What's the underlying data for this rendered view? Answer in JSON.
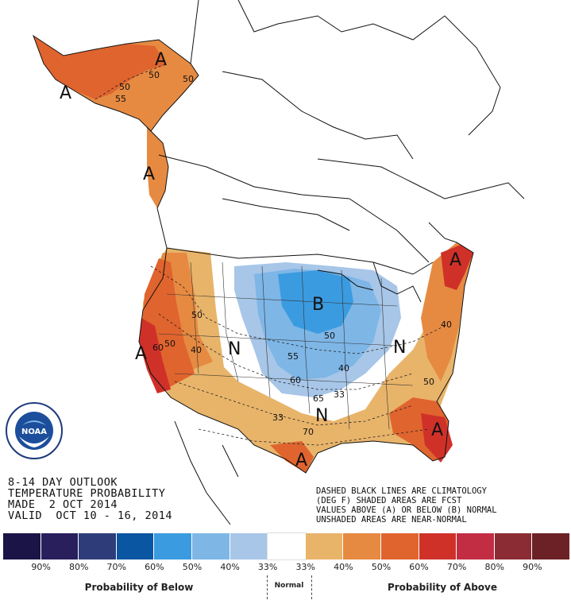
{
  "title_block": {
    "line1": "8-14 DAY OUTLOOK",
    "line2": "TEMPERATURE PROBABILITY",
    "line3": "MADE  2 OCT 2014",
    "line4": "VALID  OCT 10 - 16, 2014"
  },
  "notes": {
    "line1": "DASHED BLACK LINES ARE CLIMATOLOGY",
    "line2": "(DEG F) SHADED AREAS ARE FCST",
    "line3": "VALUES ABOVE (A) OR BELOW (B) NORMAL",
    "line4": "UNSHADED AREAS ARE NEAR-NORMAL"
  },
  "logo": {
    "text": "NOAA",
    "ring_text": "NATIONAL OCEANIC AND ATMOSPHERIC ADMINISTRATION · U.S. DEPARTMENT OF COMMERCE"
  },
  "map_labels": {
    "A_alaska": "A",
    "A_alaska_south": "A",
    "A_alaska_west": "A",
    "A_west_coast": "A",
    "A_northeast": "A",
    "A_southeast": "A",
    "A_texas": "A",
    "B_central": "B",
    "N_west": "N",
    "N_south": "N",
    "N_east": "N",
    "p50_alaska_a": "50",
    "p50_alaska_b": "50",
    "p50_alaska_c": "50",
    "p55_alaska": "55",
    "p50_nw": "50",
    "p60_west": "60",
    "p50_west": "50",
    "p40_west": "40",
    "p50_central": "50",
    "p55_central": "55",
    "p40_central": "40",
    "p60_central": "60",
    "p65_central": "65",
    "p33_central": "33",
    "p33_south": "33",
    "p50_southeast": "50",
    "p40_east": "40",
    "p70_east": "70"
  },
  "legend": {
    "colors": [
      "#1b1446",
      "#281f5c",
      "#2e3d7a",
      "#0b56a3",
      "#3b9be0",
      "#7eb6e6",
      "#a7c6e8",
      "#ffffff",
      "#e8b46a",
      "#e68a42",
      "#e0642e",
      "#cf3129",
      "#c22d44",
      "#8b2b33",
      "#6b2125"
    ],
    "percentages": [
      "90%",
      "80%",
      "70%",
      "60%",
      "50%",
      "40%",
      "33%",
      "33%",
      "40%",
      "50%",
      "60%",
      "70%",
      "80%",
      "90%"
    ],
    "caption_below": "Probability of Below",
    "caption_normal": "Normal",
    "caption_above": "Probability of Above"
  }
}
